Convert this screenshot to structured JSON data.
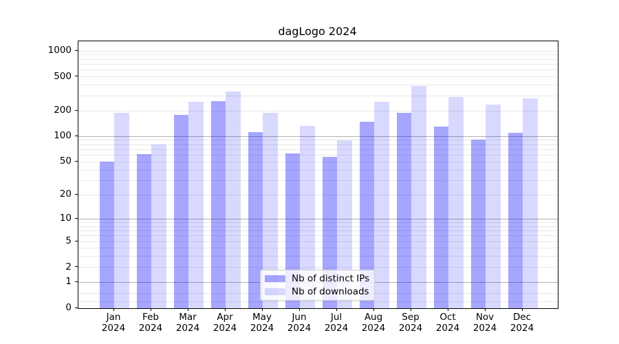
{
  "chart_data": {
    "type": "bar",
    "title": "dagLogo 2024",
    "yscale": "log1p",
    "ylim": [
      0,
      1300
    ],
    "grid": true,
    "legend_position": "lower center",
    "x_months": [
      "Jan",
      "Feb",
      "Mar",
      "Apr",
      "May",
      "Jun",
      "Jul",
      "Aug",
      "Sep",
      "Oct",
      "Nov",
      "Dec"
    ],
    "x_year": "2024",
    "ytick_labels": [
      0,
      1,
      2,
      5,
      10,
      20,
      50,
      100,
      200,
      500,
      1000
    ],
    "series": [
      {
        "name": "Nb of distinct IPs",
        "color": "rgba(0,0,255,0.35)",
        "values": [
          50,
          62,
          180,
          260,
          112,
          63,
          57,
          150,
          190,
          131,
          92,
          110
        ]
      },
      {
        "name": "Nb of downloads",
        "color": "rgba(0,0,255,0.15)",
        "values": [
          190,
          80,
          255,
          335,
          190,
          134,
          90,
          255,
          390,
          292,
          238,
          280
        ]
      }
    ],
    "gridlines": {
      "major_values": [
        1,
        10,
        100
      ],
      "minor_values": [
        0.2,
        0.5,
        2,
        3,
        4,
        5,
        6,
        7,
        8,
        9,
        20,
        30,
        40,
        50,
        60,
        70,
        80,
        90,
        200,
        300,
        400,
        500,
        600,
        700,
        800,
        900,
        1000
      ],
      "major_color": "#b0b0b0",
      "minor_color": "#e8e8e8"
    }
  }
}
